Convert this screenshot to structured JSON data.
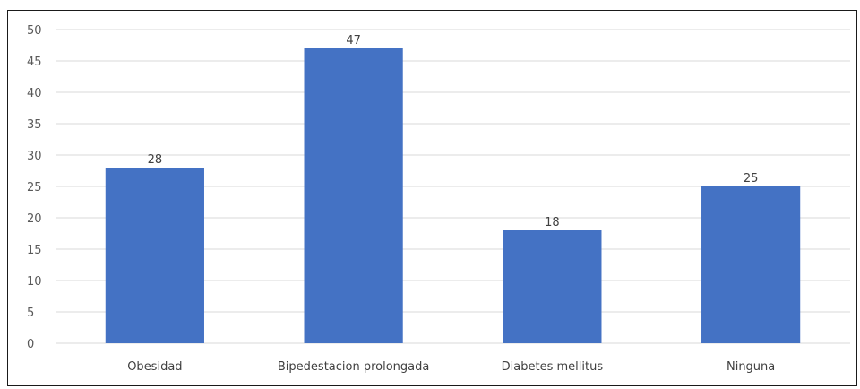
{
  "chart_data": {
    "type": "bar",
    "categories": [
      "Obesidad",
      "Bipedestacion prolongada",
      "Diabetes mellitus",
      "Ninguna"
    ],
    "values": [
      28,
      47,
      18,
      25
    ],
    "data_labels": [
      "28",
      "47",
      "18",
      "25"
    ],
    "title": "",
    "xlabel": "",
    "ylabel": "",
    "ylim": [
      0,
      50
    ],
    "yticks": [
      "0",
      "5",
      "10",
      "15",
      "20",
      "25",
      "30",
      "35",
      "40",
      "45",
      "50"
    ],
    "grid": true,
    "legend": "none",
    "bar_color": "#4472c4",
    "grid_color": "#d9d9d9"
  }
}
